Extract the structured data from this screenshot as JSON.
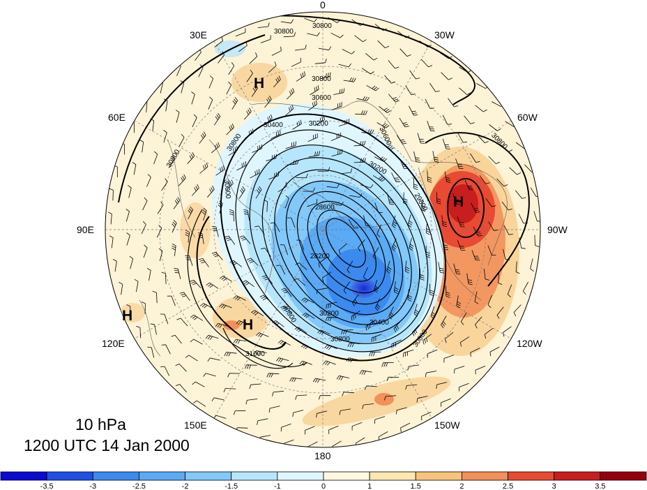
{
  "map": {
    "projection": "north polar stereographic",
    "longitude_labels": [
      {
        "id": "lon-0",
        "text": "0"
      },
      {
        "id": "lon-30w",
        "text": "30W"
      },
      {
        "id": "lon-60w",
        "text": "60W"
      },
      {
        "id": "lon-90w",
        "text": "90W"
      },
      {
        "id": "lon-120w",
        "text": "120W"
      },
      {
        "id": "lon-150w",
        "text": "150W"
      },
      {
        "id": "lon-180",
        "text": "180"
      },
      {
        "id": "lon-150e",
        "text": "150E"
      },
      {
        "id": "lon-120e",
        "text": "120E"
      },
      {
        "id": "lon-90e",
        "text": "90E"
      },
      {
        "id": "lon-60e",
        "text": "60E"
      },
      {
        "id": "lon-30e",
        "text": "30E"
      }
    ],
    "contour_labels": [
      "30800",
      "30800",
      "30800",
      "30600",
      "30800",
      "30200",
      "30400",
      "30600",
      "30200",
      "29600",
      "30800",
      "30000",
      "28600",
      "28200",
      "30200",
      "30400",
      "30800",
      "31000",
      "30800",
      "30800",
      "30800"
    ],
    "high_markers": [
      "H",
      "H",
      "H",
      "H"
    ],
    "shading_colors": {
      "strong_negative": "#2020d0",
      "negative": "#4aa8ec",
      "weak_negative": "#b8ecfa",
      "weak_positive": "#fdf3d6",
      "positive": "#f8cf92",
      "strong_positive": "#f06848",
      "very_strong_positive": "#c81818"
    }
  },
  "caption": {
    "level": "10 hPa",
    "datetime": "1200 UTC 14 Jan 2000"
  },
  "colorbar": {
    "ticks": [
      "-3.5",
      "-3",
      "-2.5",
      "-2",
      "-1.5",
      "-1",
      "0",
      "1",
      "1.5",
      "2",
      "2.5",
      "3",
      "3.5"
    ],
    "colors": [
      "#0a0ad2",
      "#1e50e6",
      "#3a8af0",
      "#5aaaf5",
      "#82c8fa",
      "#b6e6fc",
      "#e0f6ff",
      "#fff8e0",
      "#fde6b0",
      "#f9c37c",
      "#f2905a",
      "#e84a32",
      "#c81e1e",
      "#96000c"
    ]
  }
}
